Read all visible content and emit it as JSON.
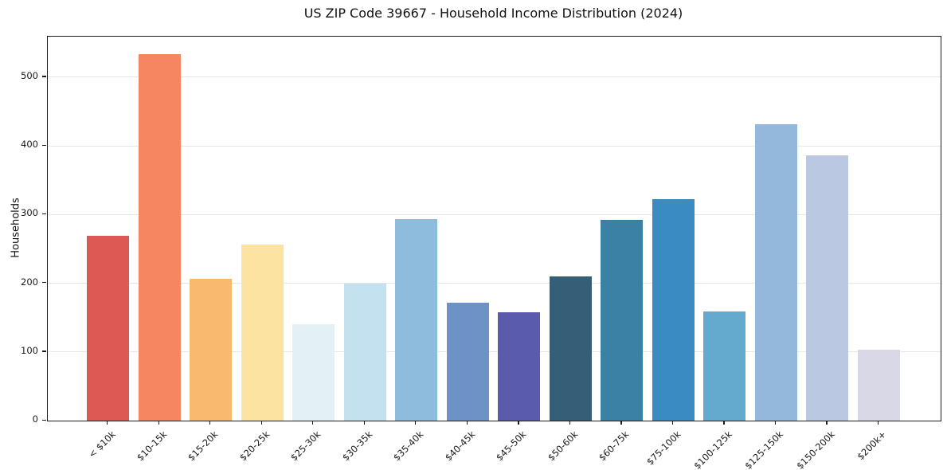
{
  "figure": {
    "background": "#ffffff",
    "text_color": "#1a1a1a",
    "gridline_color": "#e6e6e6"
  },
  "chart_data": {
    "type": "bar",
    "title": "US ZIP Code 39667 - Household Income Distribution (2024)",
    "xlabel": "",
    "ylabel": "Households",
    "ylim": [
      0,
      559
    ],
    "yticks": [
      0,
      100,
      200,
      300,
      400,
      500
    ],
    "grid": "horizontal-only",
    "legend": "none",
    "categories": [
      "< $10k",
      "$10-15k",
      "$15-20k",
      "$20-25k",
      "$25-30k",
      "$30-35k",
      "$35-40k",
      "$40-45k",
      "$45-50k",
      "$50-60k",
      "$60-75k",
      "$75-100k",
      "$100-125k",
      "$125-150k",
      "$150-200k",
      "$200k+"
    ],
    "values": [
      269,
      533,
      207,
      256,
      140,
      199,
      294,
      172,
      158,
      210,
      292,
      322,
      159,
      432,
      386,
      103
    ],
    "bar_colors": [
      "#dc5a53",
      "#f48761",
      "#f9ba6f",
      "#fce3a2",
      "#e3f0f5",
      "#c3e1ee",
      "#8ebcdc",
      "#6d92c6",
      "#5a5cab",
      "#355e77",
      "#3b80a5",
      "#3a8cc0",
      "#64aacf",
      "#93b8db",
      "#bac8e2",
      "#d8d8e7"
    ]
  }
}
